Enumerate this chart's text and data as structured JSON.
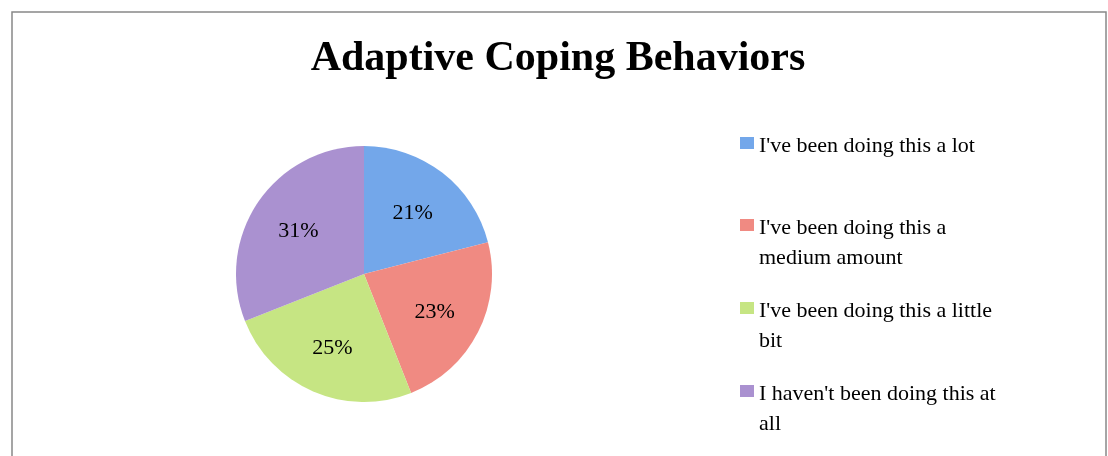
{
  "chart_data": {
    "type": "pie",
    "title": "Adaptive Coping Behaviors",
    "categories": [
      "I've been doing this a lot",
      "I've been doing this a medium amount",
      "I've been doing this a little bit",
      "I haven't been doing this at all"
    ],
    "values": [
      21,
      23,
      25,
      31
    ],
    "colors": [
      "#73a7ea",
      "#f08a82",
      "#c6e583",
      "#aa91d0"
    ],
    "value_labels": [
      "21%",
      "23%",
      "25%",
      "31%"
    ],
    "legend": "right"
  }
}
